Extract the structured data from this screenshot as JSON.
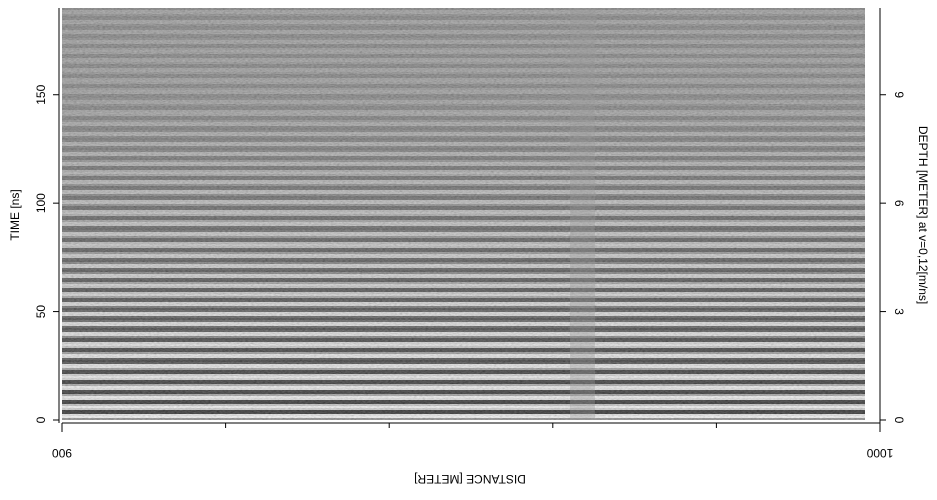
{
  "chart_data": {
    "type": "radargram",
    "xlabel": "DISTANCE [METER]",
    "ylabel": "TIME [ns]",
    "y2label": "DEPTH [METER] at v=0,12[m/ns]",
    "xlim": [
      900,
      1000
    ],
    "xticks": [
      900,
      1000
    ],
    "x_minor_ticks": [
      920,
      940,
      960,
      980
    ],
    "ylim": [
      0,
      190
    ],
    "yticks": [
      0,
      50,
      100,
      150
    ],
    "y2lim": [
      0,
      11.4
    ],
    "y2ticks": [
      0,
      3,
      6,
      9
    ]
  }
}
